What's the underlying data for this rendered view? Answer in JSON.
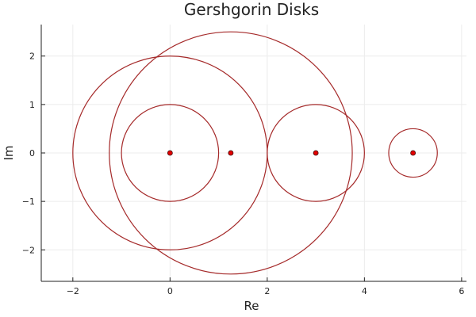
{
  "chart_data": {
    "type": "scatter",
    "title": "Gershgorin Disks",
    "xlabel": "Re",
    "ylabel": "Im",
    "xlim": [
      -2.65,
      6.1
    ],
    "ylim": [
      -2.65,
      2.65
    ],
    "xticks": [
      -2,
      0,
      2,
      4,
      6
    ],
    "yticks": [
      -2,
      -1,
      0,
      1,
      2
    ],
    "xtick_labels": [
      "−2",
      "0",
      "2",
      "4",
      "6"
    ],
    "ytick_labels": [
      "−2",
      "−1",
      "0",
      "1",
      "2"
    ],
    "grid": true,
    "legend": "none",
    "disks": [
      {
        "center": [
          0,
          0
        ],
        "radius": 1
      },
      {
        "center": [
          0,
          0
        ],
        "radius": 2
      },
      {
        "center": [
          1.25,
          0
        ],
        "radius": 2.5
      },
      {
        "center": [
          3,
          0
        ],
        "radius": 1
      },
      {
        "center": [
          5,
          0
        ],
        "radius": 0.5
      }
    ],
    "points": [
      {
        "x": 0,
        "y": 0
      },
      {
        "x": 1.25,
        "y": 0
      },
      {
        "x": 3,
        "y": 0
      },
      {
        "x": 5,
        "y": 0
      }
    ],
    "colors": {
      "disk": "#a52a2a",
      "point_fill": "#e30000",
      "point_stroke": "#3a0000"
    }
  }
}
